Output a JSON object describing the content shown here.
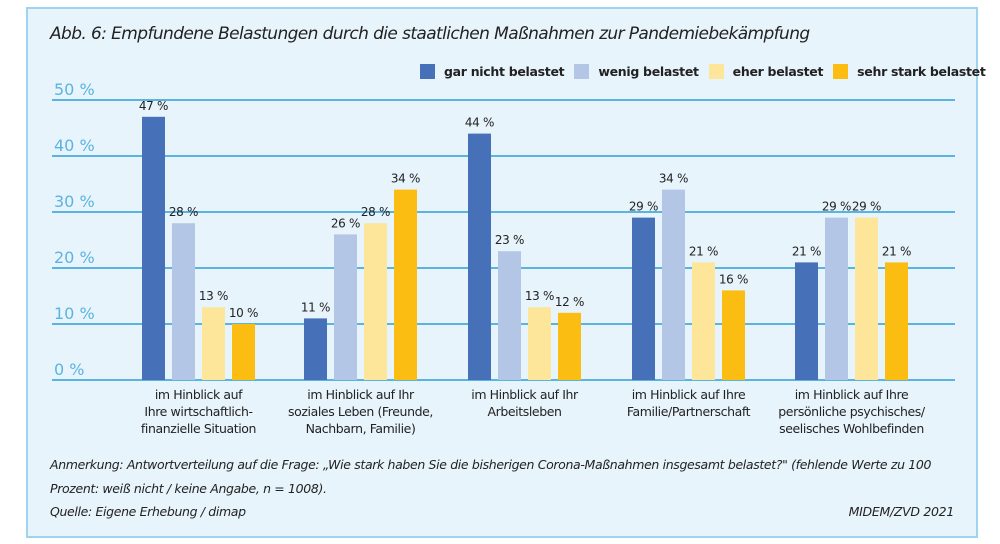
{
  "chart_data": {
    "type": "bar",
    "title": "Abb. 6: Empfundene Belastungen durch die staatlichen Maßnahmen zur Pandemiebekämpfung",
    "xlabel": "",
    "ylabel": "",
    "ylim": [
      0,
      50
    ],
    "yticks": [
      0,
      10,
      20,
      30,
      40,
      50
    ],
    "ytick_labels": [
      "0 %",
      "10 %",
      "20 %",
      "30 %",
      "40 %",
      "50 %"
    ],
    "grid": true,
    "legend_position": "top-right",
    "categories": [
      [
        "im Hinblick auf",
        "Ihre wirtschaftlich-",
        "finanzielle Situation"
      ],
      [
        "im Hinblick auf Ihr",
        "soziales Leben (Freunde,",
        "Nachbarn, Familie)"
      ],
      [
        "im Hinblick auf Ihr",
        "Arbeitsleben"
      ],
      [
        "im Hinblick auf Ihre",
        "Familie/Partnerschaft"
      ],
      [
        "im Hinblick auf Ihre",
        "persönliche psychisches/",
        "seelisches Wohlbefinden"
      ]
    ],
    "series": [
      {
        "name": "gar nicht belastet",
        "color": "#4670b8",
        "values": [
          47,
          11,
          44,
          29,
          21
        ],
        "labels": [
          "47 %",
          "11 %",
          "44 %",
          "29 %",
          "21 %"
        ]
      },
      {
        "name": "wenig belastet",
        "color": "#b3c6e6",
        "values": [
          28,
          26,
          23,
          34,
          29
        ],
        "labels": [
          "28 %",
          "26 %",
          "23 %",
          "34 %",
          "29 %"
        ]
      },
      {
        "name": "eher belastet",
        "color": "#fde59a",
        "values": [
          13,
          28,
          13,
          21,
          29
        ],
        "labels": [
          "13 %",
          "28 %",
          "13 %",
          "21 %",
          "29 %"
        ]
      },
      {
        "name": "sehr stark belastet",
        "color": "#fbbd12",
        "values": [
          10,
          34,
          12,
          16,
          21
        ],
        "labels": [
          "10 %",
          "34 %",
          "12 %",
          "16 %",
          "21 %"
        ]
      }
    ],
    "colors": {
      "grid": "#5bb4e0",
      "tick_label": "#5bb4e0",
      "panel_bg": "#e8f4fc",
      "panel_border": "#9fd3ef"
    }
  },
  "notes": {
    "line1": "Anmerkung: Antwortverteilung auf die Frage: „Wie stark haben Sie die bisherigen Corona-Maßnahmen insgesamt belastet?\" (fehlende Werte zu 100",
    "line2": "Prozent: weiß nicht / keine Angabe, n = 1008).",
    "source": "Quelle: Eigene Erhebung / dimap",
    "credit": "MIDEM/ZVD 2021"
  }
}
